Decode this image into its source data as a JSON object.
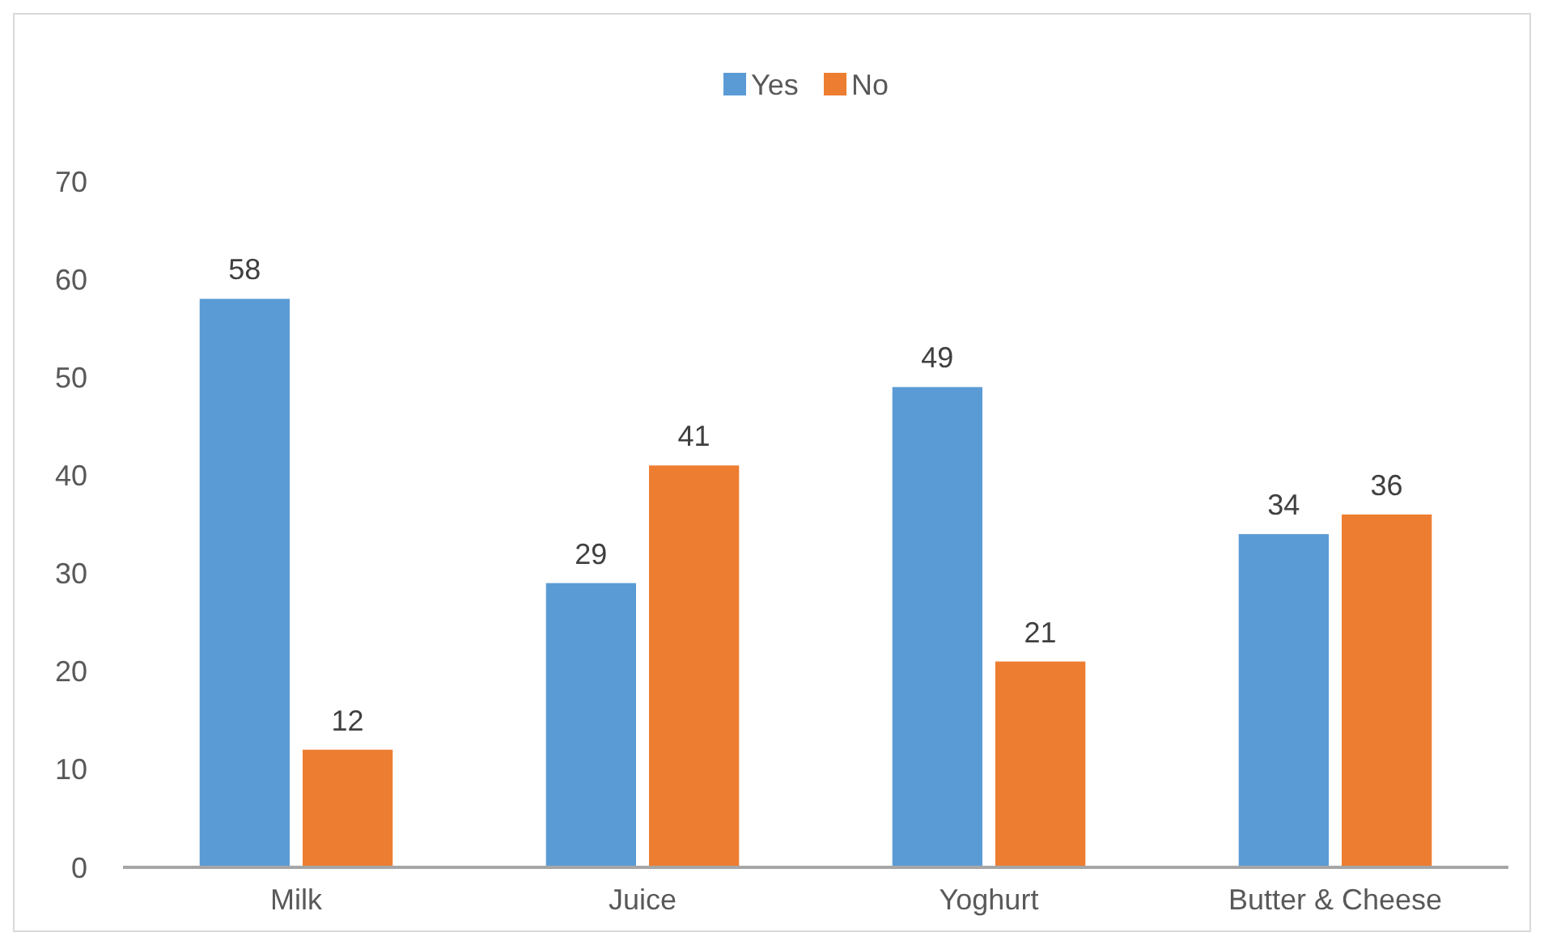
{
  "chart_data": {
    "type": "bar",
    "categories": [
      "Milk",
      "Juice",
      "Yoghurt",
      "Butter & Cheese"
    ],
    "series": [
      {
        "name": "Yes",
        "color": "#5b9bd5",
        "values": [
          58,
          29,
          49,
          34
        ]
      },
      {
        "name": "No",
        "color": "#ed7d31",
        "values": [
          12,
          41,
          21,
          36
        ]
      }
    ],
    "ylim": [
      0,
      70
    ],
    "yticks": [
      0,
      10,
      20,
      30,
      40,
      50,
      60,
      70
    ],
    "grid": false,
    "legend": "top",
    "data_labels": true
  }
}
